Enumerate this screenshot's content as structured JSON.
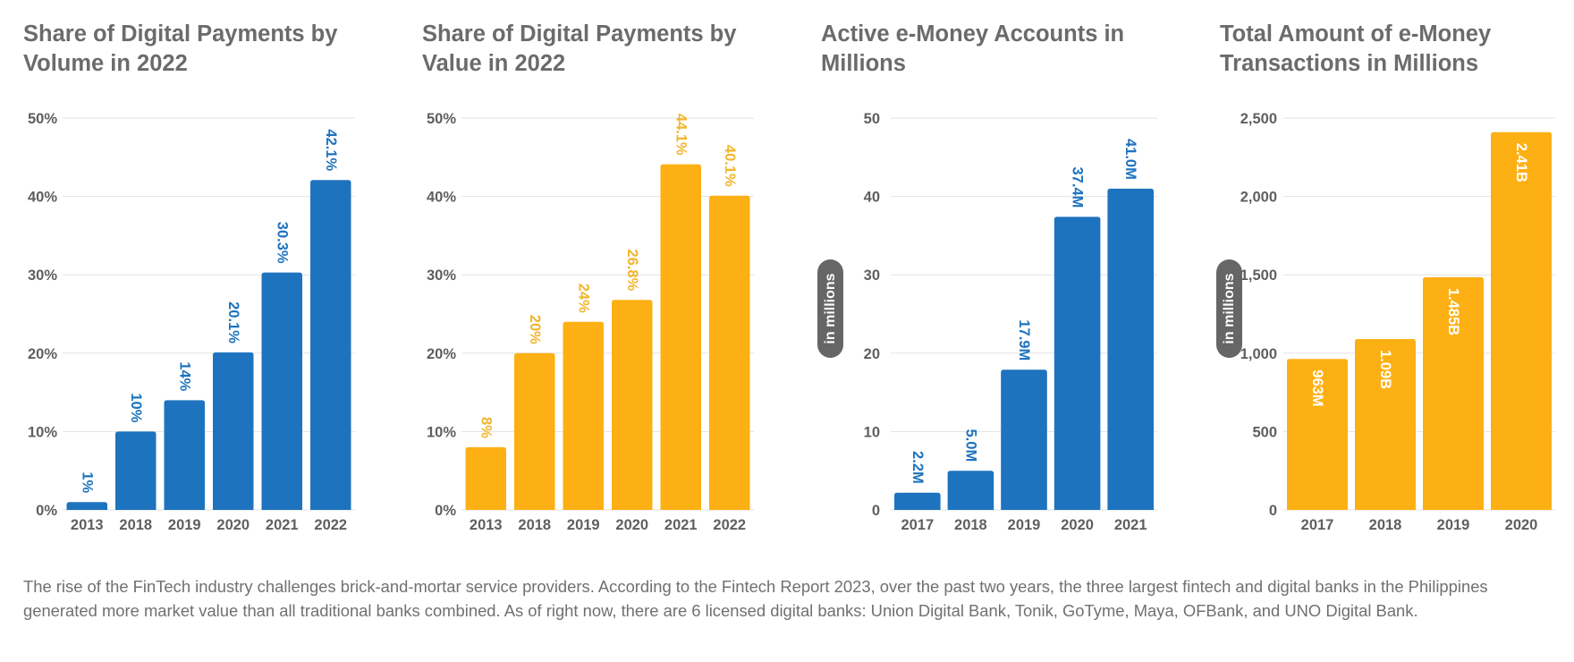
{
  "chart_data": [
    {
      "type": "bar",
      "title": "Share of Digital Payments by Volume in 2022",
      "categories": [
        "2013",
        "2018",
        "2019",
        "2020",
        "2021",
        "2022"
      ],
      "values": [
        1,
        10,
        14,
        20.1,
        30.3,
        42.1
      ],
      "value_labels": [
        "1%",
        "10%",
        "14%",
        "20.1%",
        "30.3%",
        "42.1%"
      ],
      "ylim": [
        0,
        50
      ],
      "yticks": [
        0,
        10,
        20,
        30,
        40,
        50
      ],
      "ytick_labels": [
        "0%",
        "10%",
        "20%",
        "30%",
        "40%",
        "50%"
      ],
      "unit_label": "",
      "label_position": "above",
      "color": "#1e73be",
      "label_color": "#1e73be",
      "grid": true
    },
    {
      "type": "bar",
      "title": "Share of Digital Payments by Value in 2022",
      "categories": [
        "2013",
        "2018",
        "2019",
        "2020",
        "2021",
        "2022"
      ],
      "values": [
        8,
        20,
        24,
        26.8,
        44.1,
        40.1
      ],
      "value_labels": [
        "8%",
        "20%",
        "24%",
        "26.8%",
        "44.1%",
        "40.1%"
      ],
      "ylim": [
        0,
        50
      ],
      "yticks": [
        0,
        10,
        20,
        30,
        40,
        50
      ],
      "ytick_labels": [
        "0%",
        "10%",
        "20%",
        "30%",
        "40%",
        "50%"
      ],
      "unit_label": "",
      "label_position": "above",
      "color": "#fdb013",
      "label_color": "#f2b52d",
      "grid": true
    },
    {
      "type": "bar",
      "title": "Active e-Money Accounts in Millions",
      "categories": [
        "2017",
        "2018",
        "2019",
        "2020",
        "2021"
      ],
      "values": [
        2.2,
        5.0,
        17.9,
        37.4,
        41.0
      ],
      "value_labels": [
        "2.2M",
        "5.0M",
        "17.9M",
        "37.4M",
        "41.0M"
      ],
      "ylim": [
        0,
        50
      ],
      "yticks": [
        0,
        10,
        20,
        30,
        40,
        50
      ],
      "ytick_labels": [
        "0",
        "10",
        "20",
        "30",
        "40",
        "50"
      ],
      "unit_label": "in millions",
      "label_position": "above",
      "color": "#1e73be",
      "label_color": "#1e73be",
      "grid": true
    },
    {
      "type": "bar",
      "title": "Total Amount of e-Money Transactions in Millions",
      "categories": [
        "2017",
        "2018",
        "2019",
        "2020"
      ],
      "values": [
        963,
        1090,
        1485,
        2410
      ],
      "value_labels": [
        "963M",
        "1.09B",
        "1.485B",
        "2.41B"
      ],
      "ylim": [
        0,
        2500
      ],
      "yticks": [
        0,
        500,
        1000,
        1500,
        2000,
        2500
      ],
      "ytick_labels": [
        "0",
        "500",
        "1,000",
        "1,500",
        "2,000",
        "2,500"
      ],
      "unit_label": "in millions",
      "label_position": "inside",
      "color": "#fdb013",
      "label_color": "#ffffff",
      "grid": true
    }
  ],
  "caption": "The rise of the FinTech industry challenges brick-and-mortar service providers. According to the Fintech Report 2023, over the past two years, the three largest fintech and digital banks in the Philippines generated more market value than all traditional banks combined. As of right now, there are 6 licensed digital banks: Union Digital Bank, Tonik, GoTyme, Maya, OFBank, and UNO Digital Bank.",
  "colors": {
    "text": "#6b6b6b",
    "grid": "#e3e3e3",
    "pill": "#666666"
  }
}
